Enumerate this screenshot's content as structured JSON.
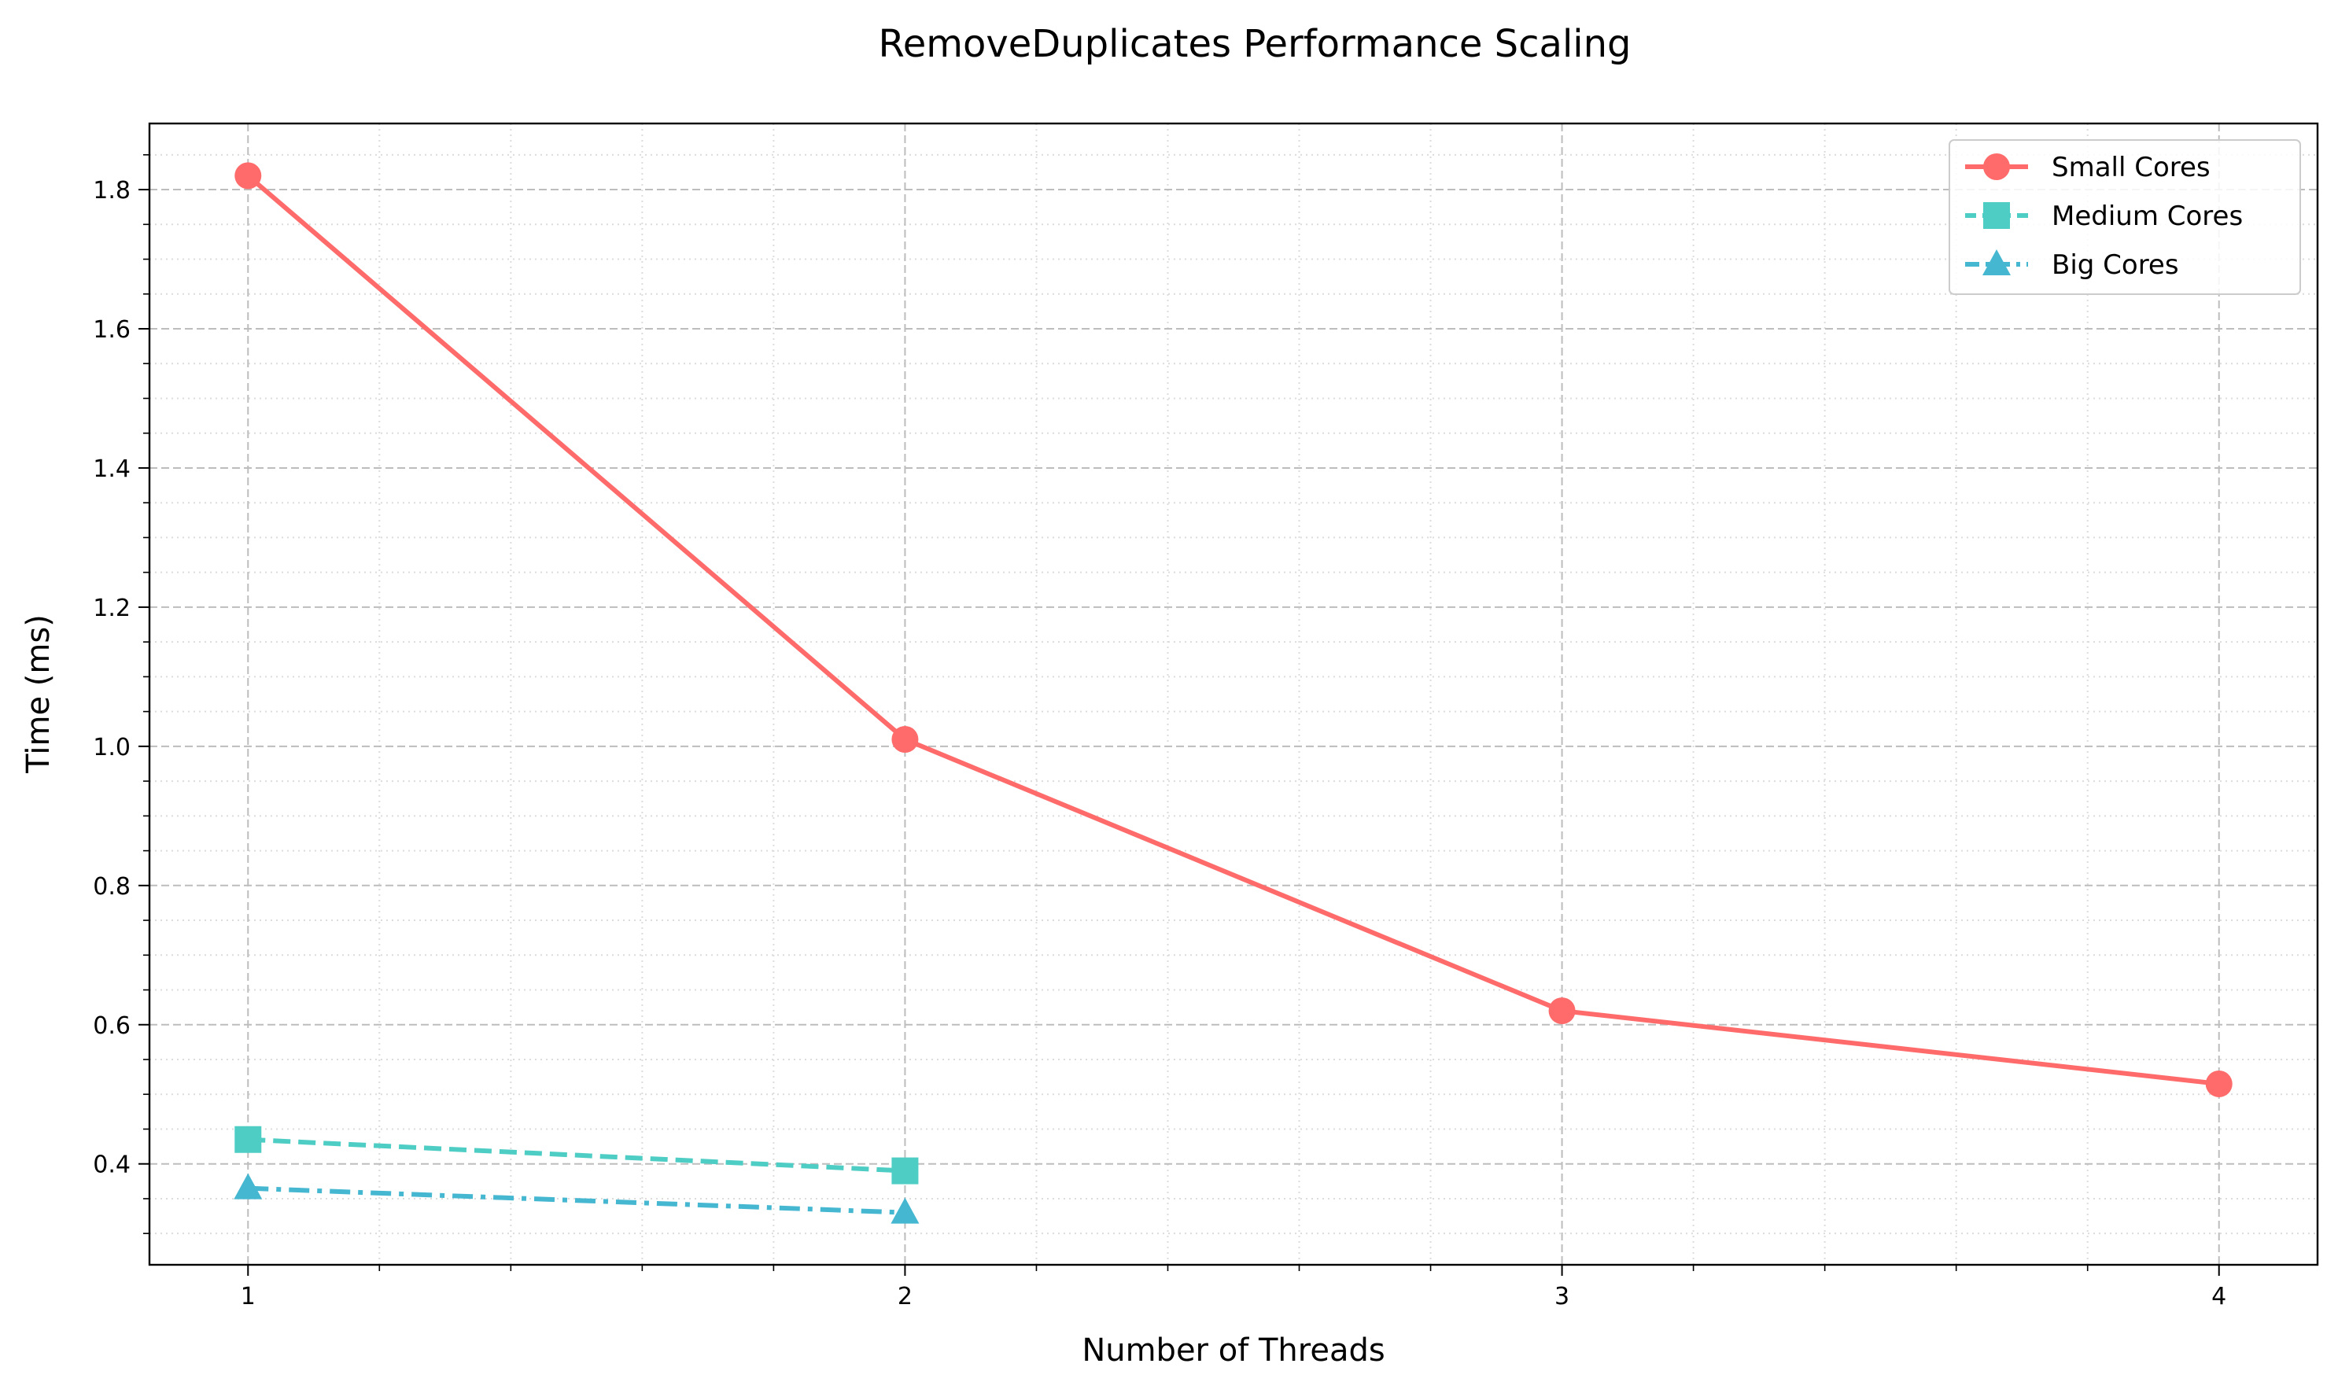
{
  "chart_data": {
    "type": "line",
    "title": "RemoveDuplicates Performance Scaling",
    "xlabel": "Number of Threads",
    "ylabel": "Time (ms)",
    "xlim": [
      0.85,
      4.15
    ],
    "ylim": [
      0.255,
      1.895
    ],
    "x_ticks": [
      1,
      2,
      3,
      4
    ],
    "x_minor_step": 0.2,
    "y_ticks": [
      0.4,
      0.6,
      0.8,
      1.0,
      1.2,
      1.4,
      1.6,
      1.8
    ],
    "y_tick_labels": [
      "0.4",
      "0.6",
      "0.8",
      "1.0",
      "1.2",
      "1.4",
      "1.6",
      "1.8"
    ],
    "y_minor_step": 0.05,
    "grid": "on (major dashed, minor dotted)",
    "legend": "top-right",
    "series": [
      {
        "name": "Small Cores",
        "x": [
          1,
          2,
          3,
          4
        ],
        "values": [
          1.82,
          1.01,
          0.62,
          0.515
        ],
        "color": "#ff6b6b",
        "marker": "circle",
        "linestyle": "solid"
      },
      {
        "name": "Medium Cores",
        "x": [
          1,
          2
        ],
        "values": [
          0.435,
          0.39
        ],
        "color": "#4ecdc4",
        "marker": "square",
        "linestyle": "dashed"
      },
      {
        "name": "Big Cores",
        "x": [
          1,
          2
        ],
        "values": [
          0.365,
          0.33
        ],
        "color": "#45b7d1",
        "marker": "triangle",
        "linestyle": "dashdot"
      }
    ]
  }
}
